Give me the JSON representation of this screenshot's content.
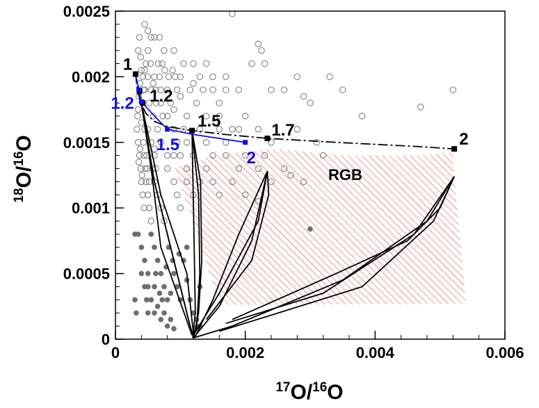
{
  "chart_data": {
    "type": "scatter",
    "xlabel": {
      "sup": "17",
      "main": "O/",
      "sup2": "16",
      "main2": "O"
    },
    "ylabel": {
      "sup": "18",
      "main": "O/",
      "sup2": "16",
      "main2": "O"
    },
    "xlim": [
      0,
      0.006
    ],
    "ylim": [
      0,
      0.0025
    ],
    "x_ticks": [
      0,
      0.002,
      0.004,
      0.006
    ],
    "x_tick_labels": [
      "0",
      "0.002",
      "0.004",
      "0.006"
    ],
    "y_ticks": [
      0,
      0.0005,
      0.001,
      0.0015,
      0.002,
      0.0025
    ],
    "y_tick_labels": [
      "0",
      "0.0005",
      "0.001",
      "0.0015",
      "0.002",
      "0.0025"
    ],
    "colors": {
      "black": "#000000",
      "blue": "#1010e0",
      "hatch": "#e8302a",
      "open": "#8a8a8a",
      "filled": "#6e6e6e"
    },
    "region_label": "RGB",
    "rgb_region": [
      [
        0.0009,
        0.0013
      ],
      [
        0.0015,
        0.0014
      ],
      [
        0.0025,
        0.00145
      ],
      [
        0.0035,
        0.0014
      ],
      [
        0.0046,
        0.0014
      ],
      [
        0.0052,
        0.00142
      ],
      [
        0.0052,
        0.00135
      ],
      [
        0.0054,
        0.00027
      ],
      [
        0.0016,
        0.00026
      ],
      [
        0.0012,
        0.0009
      ]
    ],
    "black_track": [
      [
        0.00031,
        0.00202
      ],
      [
        0.00034,
        0.0019
      ],
      [
        0.00039,
        0.0018
      ],
      [
        0.00047,
        0.00172
      ],
      [
        0.0006,
        0.00166
      ],
      [
        0.0008,
        0.00162
      ],
      [
        0.00118,
        0.00159
      ],
      [
        0.0017,
        0.00156
      ],
      [
        0.00234,
        0.00153
      ],
      [
        0.0034,
        0.0015
      ],
      [
        0.0046,
        0.00147
      ],
      [
        0.00522,
        0.00145
      ]
    ],
    "black_points": [
      {
        "x": 0.00031,
        "y": 0.00202,
        "label": "1"
      },
      {
        "x": 0.00037,
        "y": 0.00189,
        "label": ""
      },
      {
        "x": 0.00042,
        "y": 0.0018,
        "label": "1.2"
      },
      {
        "x": 0.00118,
        "y": 0.00159,
        "label": "1.5"
      },
      {
        "x": 0.00234,
        "y": 0.00153,
        "label": "1.7"
      },
      {
        "x": 0.00522,
        "y": 0.00145,
        "label": "2"
      }
    ],
    "blue_track": [
      [
        0.00031,
        0.00202
      ],
      [
        0.00036,
        0.0019
      ],
      [
        0.0004,
        0.00181
      ],
      [
        0.0006,
        0.0017
      ],
      [
        0.0008,
        0.0016
      ],
      [
        0.0012,
        0.00156
      ],
      [
        0.002,
        0.0015
      ]
    ],
    "blue_points": [
      {
        "x": 0.00036,
        "y": 0.0019,
        "label": ""
      },
      {
        "x": 0.0004,
        "y": 0.00181,
        "label": "1.2"
      },
      {
        "x": 0.0008,
        "y": 0.0016,
        "label": "1.5"
      },
      {
        "x": 0.002,
        "y": 0.0015,
        "label": "2"
      }
    ],
    "mixing_curves": [
      [
        [
          0.0004,
          0.0018
        ],
        [
          0.0006,
          0.0012
        ],
        [
          0.0009,
          0.0006
        ],
        [
          0.00115,
          0.0001
        ],
        [
          0.0012,
          2e-05
        ]
      ],
      [
        [
          0.0004,
          0.0018
        ],
        [
          0.00055,
          0.0013
        ],
        [
          0.0008,
          0.0008
        ],
        [
          0.001,
          0.0004
        ],
        [
          0.00118,
          4e-05
        ]
      ],
      [
        [
          0.0004,
          0.0018
        ],
        [
          0.0007,
          0.0011
        ],
        [
          0.0011,
          0.0005
        ],
        [
          0.0012,
          5e-05
        ]
      ],
      [
        [
          0.0004,
          0.0018
        ],
        [
          0.0005,
          0.0015
        ],
        [
          0.0006,
          0.0011
        ],
        [
          0.0007,
          0.0007
        ],
        [
          0.00118,
          3e-05
        ]
      ],
      [
        [
          0.00118,
          0.00158
        ],
        [
          0.00121,
          0.0008
        ],
        [
          0.00123,
          0.0002
        ],
        [
          0.00119,
          1e-05
        ]
      ],
      [
        [
          0.00118,
          0.00159
        ],
        [
          0.00128,
          0.0011
        ],
        [
          0.0013,
          0.0005
        ],
        [
          0.00125,
          8e-05
        ],
        [
          0.00119,
          1e-05
        ]
      ],
      [
        [
          0.00118,
          0.00159
        ],
        [
          0.00131,
          0.0012
        ],
        [
          0.00133,
          0.0006
        ],
        [
          0.00128,
          0.0002
        ],
        [
          0.0012,
          1e-05
        ]
      ],
      [
        [
          0.00234,
          0.00128
        ],
        [
          0.0019,
          0.0008
        ],
        [
          0.0015,
          0.0003
        ],
        [
          0.00123,
          2e-05
        ]
      ],
      [
        [
          0.00234,
          0.00128
        ],
        [
          0.0021,
          0.00075
        ],
        [
          0.0016,
          0.00025
        ],
        [
          0.0012,
          1e-05
        ]
      ],
      [
        [
          0.00234,
          0.00128
        ],
        [
          0.00236,
          0.0011
        ],
        [
          0.0021,
          0.0006
        ],
        [
          0.0014,
          0.00015
        ]
      ],
      [
        [
          0.00234,
          0.00128
        ],
        [
          0.0022,
          0.0009
        ],
        [
          0.0016,
          0.00035
        ],
        [
          0.0012,
          3e-05
        ]
      ],
      [
        [
          0.00522,
          0.00124
        ],
        [
          0.0048,
          0.0009
        ],
        [
          0.0035,
          0.00045
        ],
        [
          0.0018,
          0.0001
        ],
        [
          0.0012,
          1e-05
        ]
      ],
      [
        [
          0.00522,
          0.00124
        ],
        [
          0.0046,
          0.0008
        ],
        [
          0.0032,
          0.00035
        ],
        [
          0.0017,
          0.00012
        ]
      ],
      [
        [
          0.00522,
          0.00124
        ],
        [
          0.005,
          0.001
        ],
        [
          0.0045,
          0.00075
        ],
        [
          0.0034,
          0.0005
        ],
        [
          0.0018,
          0.00015
        ]
      ],
      [
        [
          0.00522,
          0.00124
        ],
        [
          0.0049,
          0.0009
        ],
        [
          0.0038,
          0.0004
        ],
        [
          0.0016,
          6e-05
        ]
      ]
    ],
    "open_circles": [
      [
        0.00035,
        0.0022
      ],
      [
        0.00037,
        0.0023
      ],
      [
        0.00039,
        0.00215
      ],
      [
        0.0004,
        0.00205
      ],
      [
        0.00042,
        0.002
      ],
      [
        0.00038,
        0.00195
      ],
      [
        0.00036,
        0.00185
      ],
      [
        0.00034,
        0.0017
      ],
      [
        0.00033,
        0.0016
      ],
      [
        0.00035,
        0.0015
      ],
      [
        0.00037,
        0.0014
      ],
      [
        0.00039,
        0.0013
      ],
      [
        0.0004,
        0.0012
      ],
      [
        0.00042,
        0.0011
      ],
      [
        0.00044,
        0.001
      ],
      [
        0.00041,
        0.00125
      ],
      [
        0.00043,
        0.0019
      ],
      [
        0.00045,
        0.00205
      ],
      [
        0.00047,
        0.0021
      ],
      [
        0.0005,
        0.0022
      ],
      [
        0.00052,
        0.0018
      ],
      [
        0.00055,
        0.0019
      ],
      [
        0.00058,
        0.0017
      ],
      [
        0.0006,
        0.002
      ],
      [
        0.00063,
        0.0018
      ],
      [
        0.00066,
        0.0021
      ],
      [
        0.0007,
        0.0019
      ],
      [
        0.00073,
        0.0017
      ],
      [
        0.00076,
        0.00205
      ],
      [
        0.0008,
        0.0019
      ],
      [
        0.00085,
        0.0018
      ],
      [
        0.0009,
        0.0022
      ],
      [
        0.00095,
        0.0019
      ],
      [
        0.001,
        0.002
      ],
      [
        0.00105,
        0.0021
      ],
      [
        0.0011,
        0.0017
      ],
      [
        0.00115,
        0.0019
      ],
      [
        0.0012,
        0.00195
      ],
      [
        0.00125,
        0.0018
      ],
      [
        0.0013,
        0.002
      ],
      [
        0.00135,
        0.0019
      ],
      [
        0.0014,
        0.0017
      ],
      [
        0.0015,
        0.0019
      ],
      [
        0.0016,
        0.0018
      ],
      [
        0.0017,
        0.002
      ],
      [
        0.0018,
        0.0016
      ],
      [
        0.0019,
        0.0019
      ],
      [
        0.002,
        0.0017
      ],
      [
        0.0021,
        0.0021
      ],
      [
        0.0022,
        0.00225
      ],
      [
        0.00225,
        0.0022
      ],
      [
        0.0023,
        0.0021
      ],
      [
        0.0024,
        0.0019
      ],
      [
        0.0026,
        0.0019
      ],
      [
        0.0028,
        0.002
      ],
      [
        0.0029,
        0.00185
      ],
      [
        0.003,
        0.0018
      ],
      [
        0.0033,
        0.002
      ],
      [
        0.0035,
        0.0019
      ],
      [
        0.0038,
        0.0017
      ],
      [
        0.0047,
        0.00177
      ],
      [
        0.0052,
        0.0019
      ],
      [
        0.0018,
        0.00248
      ],
      [
        0.00045,
        0.0024
      ],
      [
        0.0005,
        0.00235
      ],
      [
        0.00055,
        0.0023
      ],
      [
        0.0006,
        0.0023
      ],
      [
        0.00068,
        0.0023
      ],
      [
        0.00075,
        0.0022
      ],
      [
        0.00088,
        0.00205
      ],
      [
        0.001,
        0.00185
      ],
      [
        0.0009,
        0.0016
      ],
      [
        0.0011,
        0.0015
      ],
      [
        0.0013,
        0.0016
      ],
      [
        0.0016,
        0.0016
      ],
      [
        0.0019,
        0.0016
      ],
      [
        0.0022,
        0.0016
      ],
      [
        0.0024,
        0.0015
      ],
      [
        0.0028,
        0.0016
      ],
      [
        0.0031,
        0.0015
      ],
      [
        0.0032,
        0.0014
      ],
      [
        0.0026,
        0.0013
      ],
      [
        0.0022,
        0.0013
      ],
      [
        0.0017,
        0.0014
      ],
      [
        0.0014,
        0.0013
      ],
      [
        0.0012,
        0.0014
      ],
      [
        0.001,
        0.0014
      ],
      [
        0.0008,
        0.0014
      ],
      [
        0.0007,
        0.0015
      ],
      [
        0.00065,
        0.0016
      ],
      [
        0.0006,
        0.00145
      ],
      [
        0.00055,
        0.0015
      ],
      [
        0.0005,
        0.0016
      ],
      [
        0.00048,
        0.0014
      ],
      [
        0.00046,
        0.0013
      ],
      [
        0.00047,
        0.0012
      ],
      [
        0.0005,
        0.0011
      ],
      [
        0.00052,
        0.001
      ],
      [
        0.00055,
        0.0009
      ],
      [
        0.0006,
        0.0012
      ],
      [
        0.00065,
        0.0011
      ],
      [
        0.0007,
        0.001
      ],
      [
        0.00075,
        0.0009
      ],
      [
        0.0008,
        0.0013
      ],
      [
        0.0009,
        0.0012
      ],
      [
        0.00095,
        0.0011
      ],
      [
        0.001,
        0.001
      ],
      [
        0.0011,
        0.0012
      ],
      [
        0.0012,
        0.0011
      ],
      [
        0.0013,
        0.0012
      ],
      [
        0.0015,
        0.0012
      ],
      [
        0.0016,
        0.0011
      ],
      [
        0.0018,
        0.0012
      ],
      [
        0.002,
        0.0011
      ],
      [
        0.0022,
        0.00105
      ],
      [
        0.0019,
        0.0013
      ],
      [
        0.0024,
        0.0012
      ],
      [
        0.0027,
        0.00125
      ],
      [
        0.0029,
        0.0012
      ],
      [
        0.00045,
        0.0019
      ],
      [
        0.0005,
        0.002
      ],
      [
        0.00054,
        0.0021
      ],
      [
        0.00058,
        0.00195
      ],
      [
        0.00062,
        0.0019
      ],
      [
        0.00068,
        0.002
      ],
      [
        0.00072,
        0.0021
      ],
      [
        0.00082,
        0.002
      ],
      [
        0.00092,
        0.002
      ],
      [
        0.0012,
        0.0021
      ],
      [
        0.0014,
        0.0021
      ],
      [
        0.0015,
        0.002
      ],
      [
        0.0017,
        0.0019
      ],
      [
        0.0009,
        0.00175
      ],
      [
        0.0008,
        0.0017
      ],
      [
        0.0007,
        0.0018
      ],
      [
        0.00035,
        0.00175
      ],
      [
        0.0004,
        0.00165
      ],
      [
        0.00045,
        0.0016
      ],
      [
        0.00043,
        0.0015
      ],
      [
        0.00038,
        0.00145
      ],
      [
        0.00036,
        0.00135
      ],
      [
        0.00044,
        0.0014
      ],
      [
        0.00049,
        0.0013
      ],
      [
        0.00052,
        0.0012
      ],
      [
        0.00057,
        0.0013
      ],
      [
        0.0006,
        0.0014
      ],
      [
        0.00062,
        0.0013
      ],
      [
        0.0014,
        0.0015
      ],
      [
        0.0015,
        0.0014
      ],
      [
        0.0017,
        0.0015
      ],
      [
        0.002,
        0.0014
      ],
      [
        0.0023,
        0.0014
      ],
      [
        0.0016,
        0.0017
      ],
      [
        0.00105,
        0.0016
      ],
      [
        0.00095,
        0.0015
      ],
      [
        0.0009,
        0.0014
      ],
      [
        0.0011,
        0.0013
      ]
    ],
    "filled_circles": [
      [
        0.00035,
        0.0008
      ],
      [
        0.0004,
        0.0007
      ],
      [
        0.00045,
        0.0006
      ],
      [
        0.0005,
        0.0005
      ],
      [
        0.00055,
        0.0008
      ],
      [
        0.0006,
        0.0007
      ],
      [
        0.00065,
        0.0006
      ],
      [
        0.0007,
        0.0005
      ],
      [
        0.00075,
        0.0004
      ],
      [
        0.0008,
        0.0003
      ],
      [
        0.00085,
        0.00035
      ],
      [
        0.0009,
        0.0005
      ],
      [
        0.00095,
        0.0004
      ],
      [
        0.001,
        0.0003
      ],
      [
        0.00105,
        0.0006
      ],
      [
        0.0011,
        0.0007
      ],
      [
        0.0005,
        0.0004
      ],
      [
        0.00055,
        0.0003
      ],
      [
        0.0006,
        0.0002
      ],
      [
        0.00065,
        0.00025
      ],
      [
        0.0007,
        0.00015
      ],
      [
        0.00075,
        0.0002
      ],
      [
        0.0008,
        0.0001
      ],
      [
        0.00085,
        0.00015
      ],
      [
        0.0009,
        8e-05
      ],
      [
        0.00045,
        0.0004
      ],
      [
        0.0004,
        0.0005
      ],
      [
        0.00048,
        0.0003
      ],
      [
        0.0005,
        0.0002
      ],
      [
        0.0006,
        0.0004
      ],
      [
        0.00062,
        0.0005
      ],
      [
        0.00068,
        0.00035
      ],
      [
        0.00072,
        0.0003
      ],
      [
        0.00078,
        0.00055
      ],
      [
        0.00082,
        0.0007
      ],
      [
        0.00088,
        0.0006
      ],
      [
        0.00098,
        0.00065
      ],
      [
        0.0011,
        0.00045
      ],
      [
        0.00115,
        0.0003
      ],
      [
        0.0012,
        0.0002
      ],
      [
        0.0013,
        0.0001
      ],
      [
        0.00125,
        0.00015
      ],
      [
        0.0013,
        0.0004
      ],
      [
        0.0003,
        0.0003
      ],
      [
        0.00032,
        0.0002
      ],
      [
        0.0003,
        0.0008
      ]
    ],
    "outlier_point": [
      0.003,
      0.00084
    ]
  }
}
